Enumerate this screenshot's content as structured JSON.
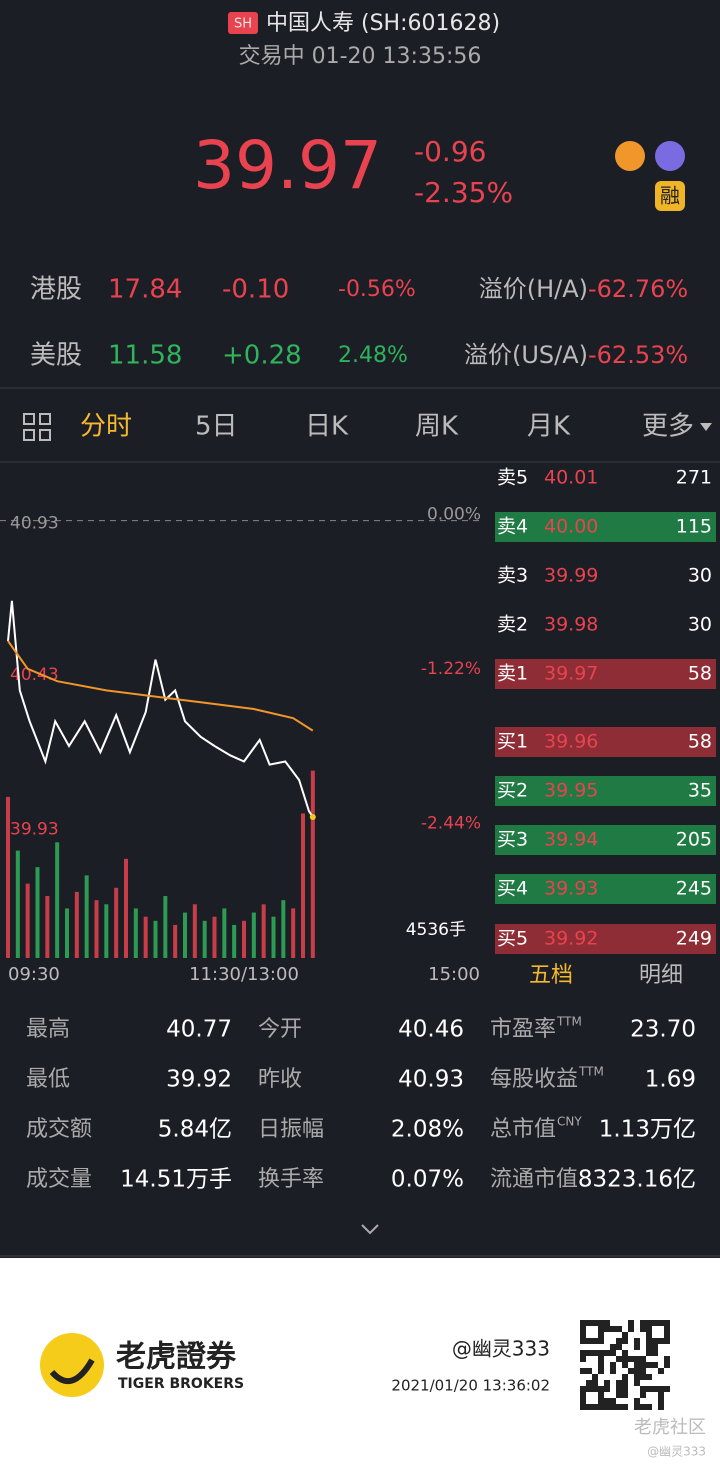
{
  "header": {
    "badge": "SH",
    "name": "中国人寿 (SH:601628)",
    "status": "交易中 01-20 13:35:56"
  },
  "quote": {
    "price": "39.97",
    "change": "-0.96",
    "change_pct": "-2.35%",
    "tag": "融"
  },
  "linked": [
    {
      "market": "港股",
      "price": "17.84",
      "change": "-0.10",
      "change_pct": "-0.56%",
      "premium_label": "溢价(H/A)",
      "premium": "-62.76%"
    },
    {
      "market": "美股",
      "price": "11.58",
      "change": "+0.28",
      "change_pct": "2.48%",
      "premium_label": "溢价(US/A)",
      "premium": "-62.53%"
    }
  ],
  "tabs": [
    "分时",
    "5日",
    "日K",
    "周K",
    "月K",
    "更多"
  ],
  "chart_data": {
    "type": "line",
    "xlim": [
      0,
      240
    ],
    "ylim": [
      39.75,
      41.11
    ],
    "xticks": [
      {
        "value": 0,
        "label": "09:30"
      },
      {
        "value": 120,
        "label": "11:30/13:00"
      },
      {
        "value": 240,
        "label": "15:00"
      }
    ],
    "yticks": [
      40.93,
      40.43,
      39.93
    ],
    "ytick_pct_labels": [
      "0.00%",
      "-1.22%",
      "-2.44%"
    ],
    "series": [
      {
        "color": "#ffffff",
        "x": [
          0,
          2,
          6,
          11,
          19,
          24,
          31,
          39,
          47,
          55,
          62,
          70,
          75,
          80,
          85,
          90,
          98,
          105,
          113,
          120,
          128,
          133,
          141,
          148,
          153,
          155
        ],
        "values": [
          40.54,
          40.67,
          40.38,
          40.28,
          40.15,
          40.28,
          40.2,
          40.28,
          40.18,
          40.3,
          40.18,
          40.31,
          40.48,
          40.35,
          40.38,
          40.28,
          40.23,
          40.2,
          40.17,
          40.15,
          40.22,
          40.14,
          40.15,
          40.09,
          39.99,
          39.97
        ]
      },
      {
        "color": "#f0962a",
        "x": [
          0,
          10,
          25,
          50,
          75,
          100,
          125,
          145,
          155
        ],
        "values": [
          40.54,
          40.45,
          40.41,
          40.38,
          40.36,
          40.34,
          40.32,
          40.29,
          40.25
        ]
      }
    ],
    "volume": {
      "vlim": [
        0,
        4600
      ],
      "label": "4536手",
      "x": [
        0,
        5,
        10,
        15,
        20,
        25,
        30,
        35,
        40,
        45,
        50,
        55,
        60,
        65,
        70,
        75,
        80,
        85,
        90,
        95,
        100,
        105,
        110,
        115,
        120,
        125,
        130,
        135,
        140,
        145,
        150,
        155
      ],
      "values": [
        3900,
        2600,
        1800,
        2200,
        1500,
        2800,
        1200,
        1600,
        2000,
        1400,
        1300,
        1700,
        2400,
        1200,
        1000,
        900,
        1500,
        800,
        1100,
        1300,
        900,
        1000,
        1200,
        800,
        900,
        1100,
        1300,
        1000,
        1400,
        1200,
        3500,
        4536
      ],
      "colors": [
        "#e8434f",
        "#2fb35c",
        "#e8434f",
        "#2fb35c",
        "#e8434f",
        "#2fb35c",
        "#2fb35c",
        "#e8434f",
        "#2fb35c",
        "#e8434f",
        "#2fb35c",
        "#e8434f",
        "#e8434f",
        "#2fb35c",
        "#e8434f",
        "#2fb35c",
        "#2fb35c",
        "#e8434f",
        "#2fb35c",
        "#e8434f",
        "#2fb35c",
        "#e8434f",
        "#2fb35c",
        "#2fb35c",
        "#e8434f",
        "#2fb35c",
        "#e8434f",
        "#2fb35c",
        "#2fb35c",
        "#e8434f",
        "#e8434f",
        "#e8434f"
      ]
    }
  },
  "order_book": {
    "tabs": [
      "五档",
      "明细"
    ],
    "rows": [
      {
        "side": "卖5",
        "price": "40.01",
        "qty": "271",
        "bg": null
      },
      {
        "side": "卖4",
        "price": "40.00",
        "qty": "115",
        "bg": "#1f7a43"
      },
      {
        "side": "卖3",
        "price": "39.99",
        "qty": "30",
        "bg": null
      },
      {
        "side": "卖2",
        "price": "39.98",
        "qty": "30",
        "bg": null
      },
      {
        "side": "卖1",
        "price": "39.97",
        "qty": "58",
        "bg": "#8e2d35"
      },
      {
        "side": "买1",
        "price": "39.96",
        "qty": "58",
        "bg": "#8e2d35"
      },
      {
        "side": "买2",
        "price": "39.95",
        "qty": "35",
        "bg": "#1f7a43"
      },
      {
        "side": "买3",
        "price": "39.94",
        "qty": "205",
        "bg": "#1f7a43"
      },
      {
        "side": "买4",
        "price": "39.93",
        "qty": "245",
        "bg": "#1f7a43"
      },
      {
        "side": "买5",
        "price": "39.92",
        "qty": "249",
        "bg": "#8e2d35"
      }
    ]
  },
  "stats": [
    [
      {
        "label": "最高",
        "value": "40.77"
      },
      {
        "label": "今开",
        "value": "40.46"
      },
      {
        "label": "市盈率",
        "sup": "TTM",
        "value": "23.70"
      }
    ],
    [
      {
        "label": "最低",
        "value": "39.92"
      },
      {
        "label": "昨收",
        "value": "40.93"
      },
      {
        "label": "每股收益",
        "sup": "TTM",
        "value": "1.69"
      }
    ],
    [
      {
        "label": "成交额",
        "value": "5.84亿"
      },
      {
        "label": "日振幅",
        "value": "2.08%"
      },
      {
        "label": "总市值",
        "sup": "CNY",
        "value": "1.13万亿"
      }
    ],
    [
      {
        "label": "成交量",
        "value": "14.51万手"
      },
      {
        "label": "换手率",
        "value": "0.07%"
      },
      {
        "label": "流通市值",
        "value": "8323.16亿"
      }
    ]
  ],
  "footer": {
    "brand": "老虎證券",
    "brand_en": "TIGER BROKERS",
    "user": "@幽灵333",
    "time": "2021/01/20 13:36:02",
    "watermark": "老虎社区",
    "watermark_user": "@幽灵333"
  }
}
